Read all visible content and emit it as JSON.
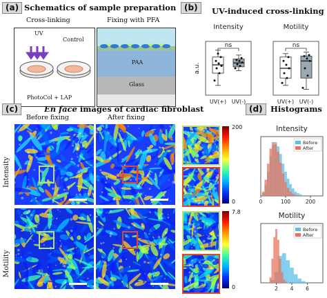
{
  "panel_a": {
    "letter": "(a)",
    "title": "Schematics of sample preparation",
    "left_header": "Cross-linking",
    "right_header": "Fixing with PFA",
    "uv_label": "UV",
    "control_label": "Control",
    "bottom_label": "PhotoCol + LAP",
    "paa_label": "PAA",
    "glass_label": "Glass"
  },
  "panel_b": {
    "letter": "(b)",
    "title": "UV-induced cross-linking"
  },
  "panel_c": {
    "letter": "(c)",
    "title_italic": "En face",
    "title_rest": " images of cardiac fibroblast",
    "col_before": "Before fixing",
    "col_after": "After fixing",
    "row_intensity": "Intensity",
    "row_motility": "Motility",
    "cbar_intensity": {
      "max": "200",
      "min": "0"
    },
    "cbar_motility": {
      "max": "7.8",
      "min": "0"
    }
  },
  "panel_d": {
    "letter": "(d)",
    "title": "Histograms"
  },
  "colors": {
    "before": "#5bbde8",
    "after": "#e8735a",
    "box_fill": "#9aa8b0",
    "highlight_green": "#b7e07a",
    "highlight_red": "#e04a2a"
  },
  "chart_data": [
    {
      "type": "box",
      "title": "Intensity",
      "ylabel": "a.u.",
      "categories": [
        "UV(+)",
        "UV(-)"
      ],
      "annotation": "ns",
      "series": [
        {
          "category": "UV(+)",
          "q1": 0.45,
          "median": 0.62,
          "q3": 0.78,
          "whisker_low": 0.2,
          "whisker_high": 0.92,
          "points": [
            0.3,
            0.45,
            0.55,
            0.6,
            0.65,
            0.7,
            0.78,
            0.85
          ]
        },
        {
          "category": "UV(-)",
          "q1": 0.58,
          "median": 0.66,
          "q3": 0.74,
          "whisker_low": 0.5,
          "whisker_high": 0.82,
          "points": [
            0.55,
            0.6,
            0.63,
            0.67,
            0.7,
            0.72,
            0.76
          ]
        }
      ]
    },
    {
      "type": "box",
      "title": "Motility",
      "categories": [
        "UV(+)",
        "UV(-)"
      ],
      "annotation": "ns",
      "series": [
        {
          "category": "UV(+)",
          "q1": 0.35,
          "median": 0.55,
          "q3": 0.78,
          "whisker_low": 0.2,
          "whisker_high": 0.85,
          "points": [
            0.25,
            0.35,
            0.45,
            0.55,
            0.62,
            0.7,
            0.78
          ]
        },
        {
          "category": "UV(-)",
          "q1": 0.35,
          "median": 0.7,
          "q3": 0.8,
          "whisker_low": 0.12,
          "whisker_high": 0.88,
          "points": [
            0.15,
            0.4,
            0.55,
            0.7,
            0.75,
            0.8,
            0.82
          ]
        }
      ]
    },
    {
      "type": "histogram",
      "title": "Intensity",
      "x_ticks": [
        "0",
        "100",
        "200"
      ],
      "xlim": [
        0,
        250
      ],
      "legend": [
        "Before",
        "After"
      ],
      "legend_position": "top-right",
      "series": [
        {
          "name": "Before",
          "bins_center": [
            10,
            20,
            30,
            40,
            50,
            60,
            70,
            80,
            90,
            100,
            110,
            120,
            130,
            140,
            150,
            160,
            170
          ],
          "values": [
            0.05,
            0.2,
            0.45,
            0.75,
            0.95,
            1.0,
            0.92,
            0.78,
            0.6,
            0.45,
            0.32,
            0.22,
            0.14,
            0.08,
            0.05,
            0.03,
            0.01
          ]
        },
        {
          "name": "After",
          "bins_center": [
            10,
            20,
            30,
            40,
            50,
            60,
            70,
            80,
            90,
            100,
            110,
            120,
            130,
            140,
            150
          ],
          "values": [
            0.08,
            0.3,
            0.6,
            0.88,
            1.0,
            0.96,
            0.82,
            0.62,
            0.42,
            0.26,
            0.15,
            0.08,
            0.04,
            0.02,
            0.01
          ]
        }
      ]
    },
    {
      "type": "histogram",
      "title": "Motility",
      "x_ticks": [
        "2",
        "4",
        "6"
      ],
      "xlim": [
        0,
        8
      ],
      "legend": [
        "Before",
        "After"
      ],
      "legend_position": "top-right",
      "series": [
        {
          "name": "Before",
          "bins_center": [
            1.5,
            2.0,
            2.5,
            3.0,
            3.5,
            4.0,
            4.5,
            5.0,
            5.5,
            6.0
          ],
          "values": [
            0.05,
            0.2,
            0.5,
            0.55,
            0.42,
            0.28,
            0.16,
            0.08,
            0.03,
            0.01
          ]
        },
        {
          "name": "After",
          "bins_center": [
            1.25,
            1.5,
            1.75,
            2.0,
            2.25,
            2.5,
            2.75,
            3.0,
            3.25
          ],
          "values": [
            0.1,
            0.45,
            0.85,
            1.0,
            0.8,
            0.45,
            0.2,
            0.06,
            0.02
          ]
        }
      ]
    }
  ]
}
